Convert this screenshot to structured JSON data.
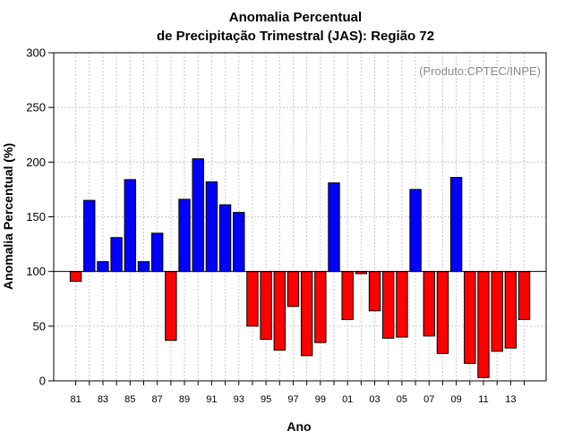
{
  "chart_data": {
    "type": "bar",
    "title_line1": "Anomalia Percentual",
    "title_line2": "de Precipitação Trimestral (JAS): Região 72",
    "credit": "(Produto:CPTEC/INPE)",
    "xlabel": "Ano",
    "ylabel": "Anomalia Percentual (%)",
    "ylim": [
      0,
      300
    ],
    "yticks": [
      0,
      50,
      100,
      150,
      200,
      250,
      300
    ],
    "baseline": 100,
    "grid": true,
    "colors": {
      "above": "#0000ff",
      "below": "#ff0000",
      "outline": "#000000"
    },
    "categories": [
      "81",
      "82",
      "83",
      "84",
      "85",
      "86",
      "87",
      "88",
      "89",
      "90",
      "91",
      "92",
      "93",
      "94",
      "95",
      "96",
      "97",
      "98",
      "99",
      "00",
      "01",
      "02",
      "03",
      "04",
      "05",
      "06",
      "07",
      "08",
      "09",
      "10",
      "11",
      "12",
      "13",
      "14"
    ],
    "tick_labels": [
      "81",
      "83",
      "85",
      "87",
      "89",
      "91",
      "93",
      "95",
      "97",
      "99",
      "01",
      "03",
      "05",
      "07",
      "09",
      "11",
      "13"
    ],
    "values": [
      91,
      165,
      109,
      131,
      184,
      109,
      135,
      37,
      166,
      203,
      182,
      161,
      154,
      50,
      38,
      28,
      68,
      23,
      35,
      181,
      56,
      98,
      64,
      39,
      40,
      175,
      41,
      25,
      186,
      16,
      3,
      27,
      30,
      56
    ]
  }
}
